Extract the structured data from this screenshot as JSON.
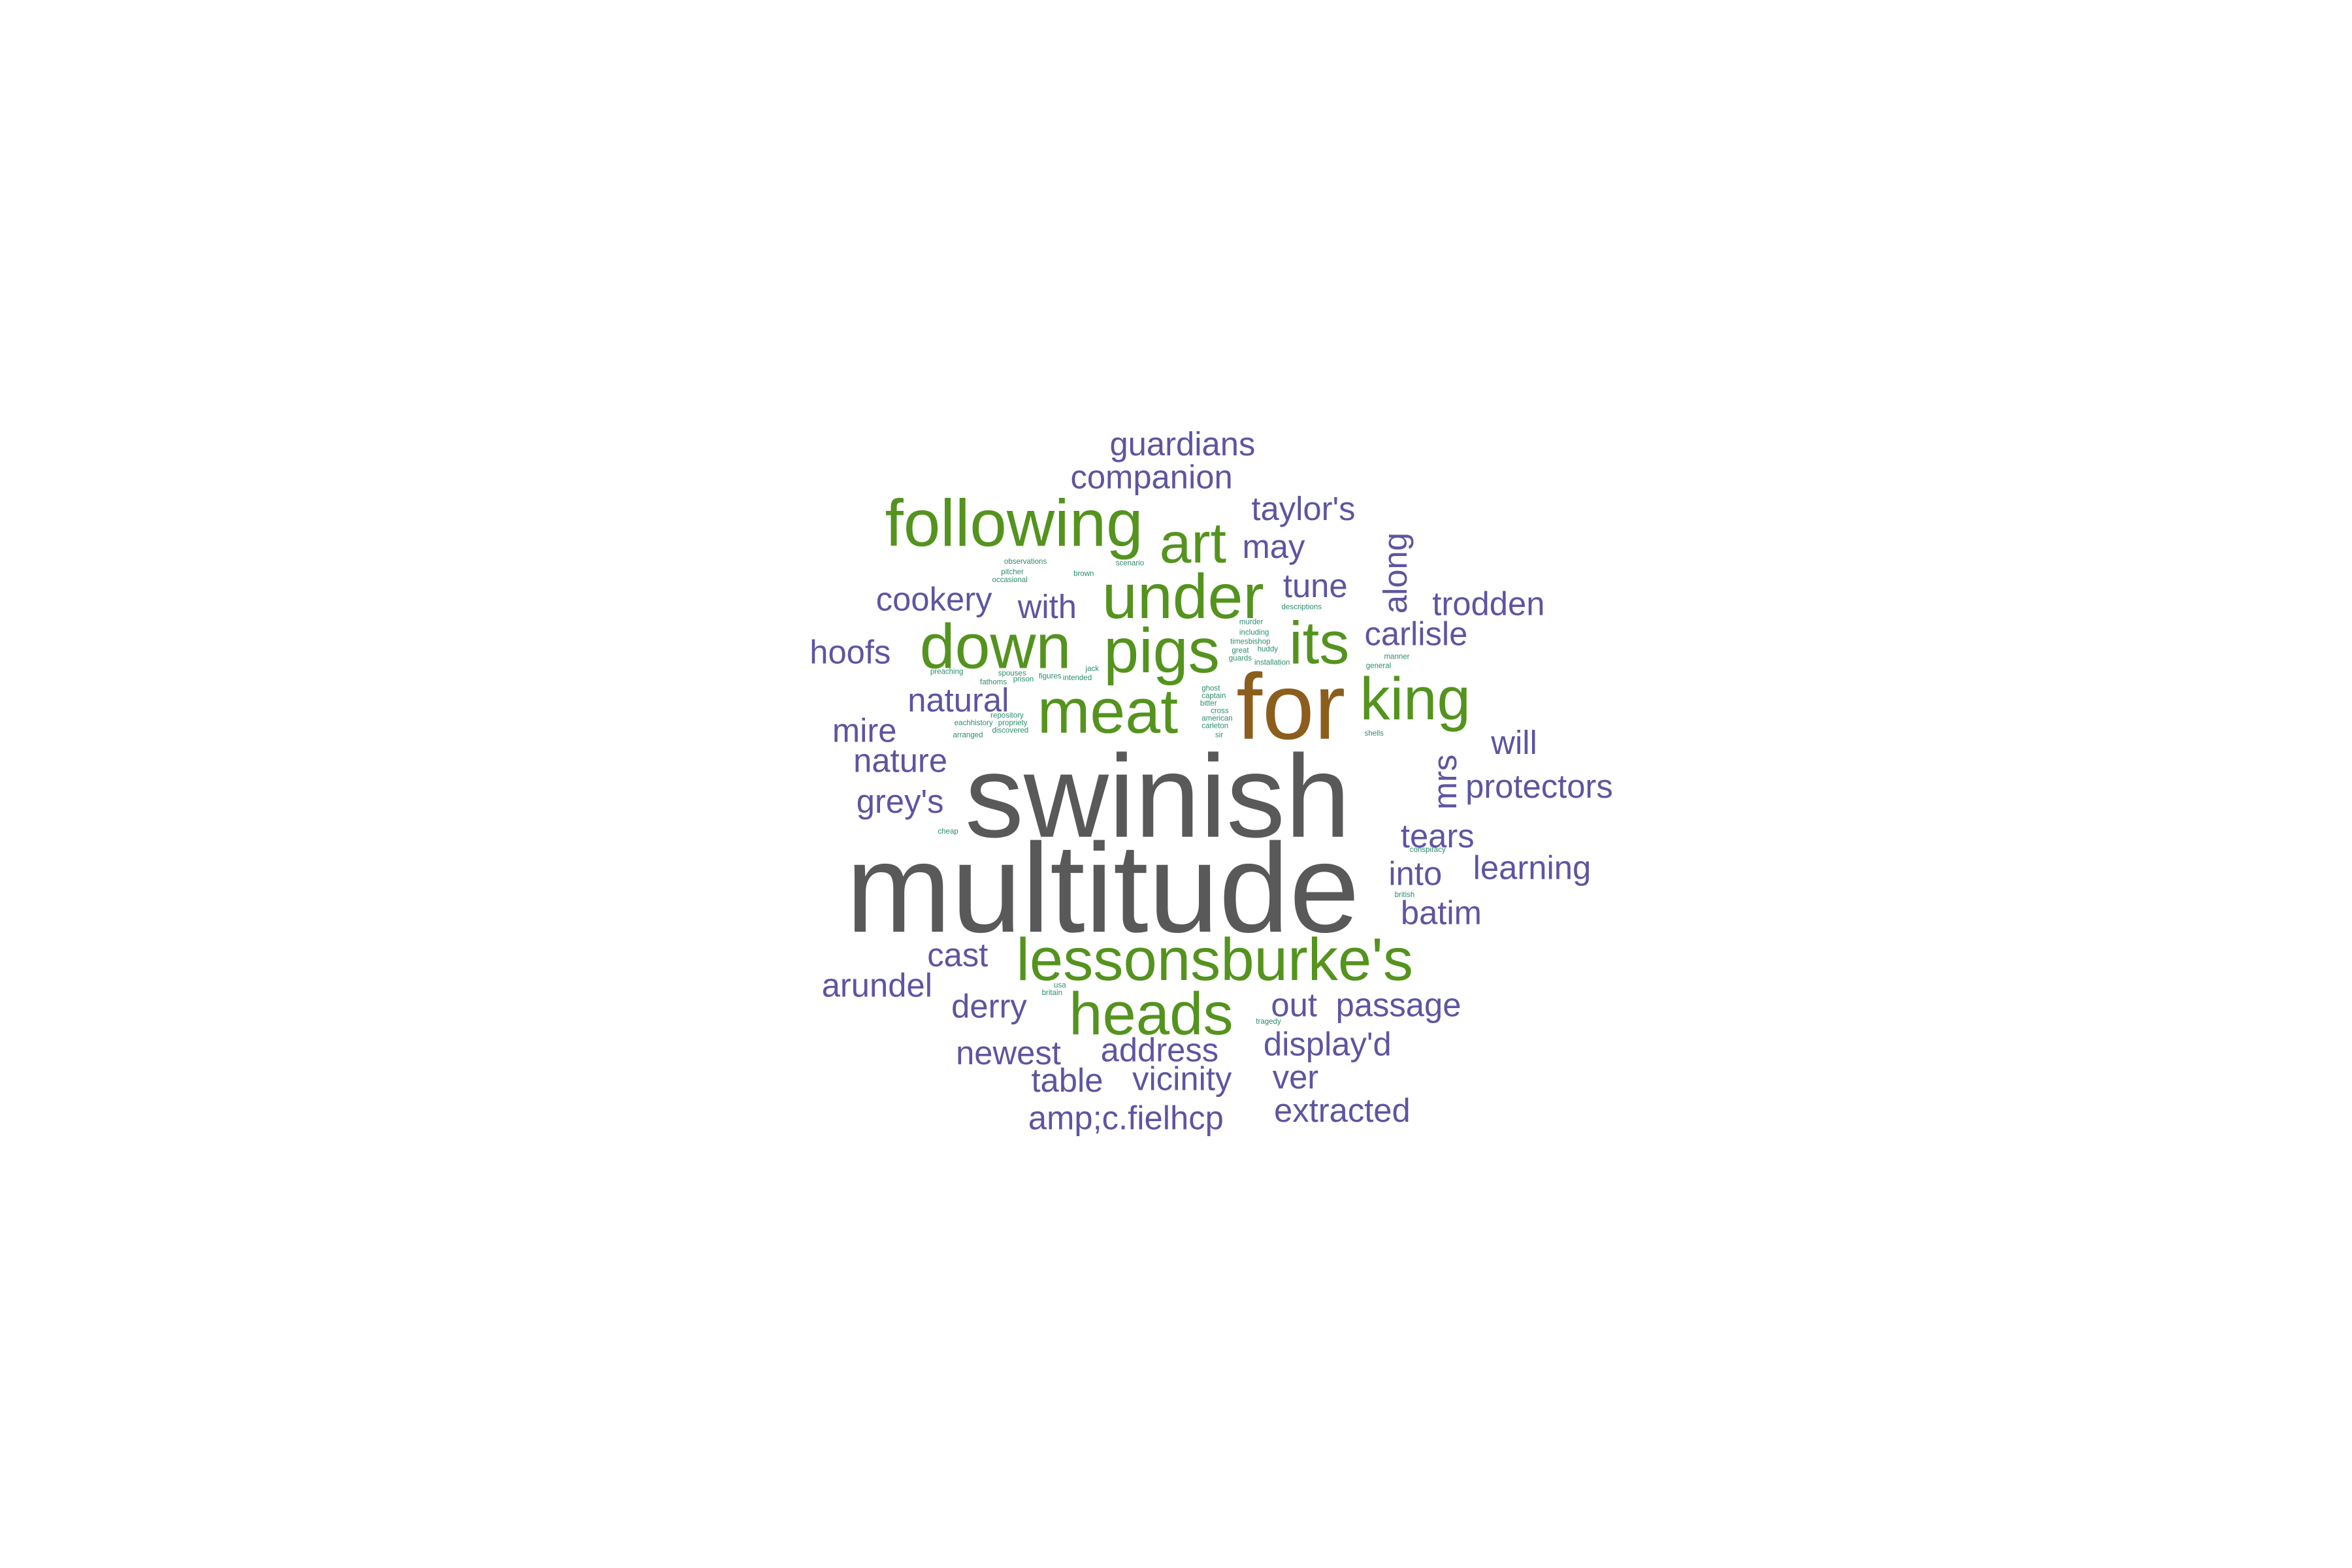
{
  "colors": {
    "background": "#ffffff",
    "tier1": "#595959",
    "tier2": "#8c5e1d",
    "tier3": "#54931e",
    "tier4": "#5e55a0",
    "tier5": "#2a8d6e"
  },
  "words": [
    {
      "text": "multitude",
      "tier": 1
    },
    {
      "text": "swinish",
      "tier": 1
    },
    {
      "text": "for",
      "tier": 2
    },
    {
      "text": "heads",
      "tier": 3
    },
    {
      "text": "lessonsburke's",
      "tier": 3
    },
    {
      "text": "pigs",
      "tier": 3
    },
    {
      "text": "meat",
      "tier": 3
    },
    {
      "text": "down",
      "tier": 3
    },
    {
      "text": "under",
      "tier": 3
    },
    {
      "text": "following",
      "tier": 3
    },
    {
      "text": "art",
      "tier": 3
    },
    {
      "text": "its",
      "tier": 3
    },
    {
      "text": "king",
      "tier": 3
    },
    {
      "text": "guardians",
      "tier": 4
    },
    {
      "text": "companion",
      "tier": 4
    },
    {
      "text": "taylor's",
      "tier": 4
    },
    {
      "text": "may",
      "tier": 4
    },
    {
      "text": "tune",
      "tier": 4
    },
    {
      "text": "cookery",
      "tier": 4
    },
    {
      "text": "with",
      "tier": 4
    },
    {
      "text": "trodden",
      "tier": 4
    },
    {
      "text": "carlisle",
      "tier": 4
    },
    {
      "text": "hoofs",
      "tier": 4
    },
    {
      "text": "natural",
      "tier": 4
    },
    {
      "text": "mire",
      "tier": 4
    },
    {
      "text": "will",
      "tier": 4
    },
    {
      "text": "nature",
      "tier": 4
    },
    {
      "text": "protectors",
      "tier": 4
    },
    {
      "text": "grey's",
      "tier": 4
    },
    {
      "text": "tears",
      "tier": 4
    },
    {
      "text": "into",
      "tier": 4
    },
    {
      "text": "learning",
      "tier": 4
    },
    {
      "text": "batim",
      "tier": 4
    },
    {
      "text": "cast",
      "tier": 4
    },
    {
      "text": "arundel",
      "tier": 4
    },
    {
      "text": "derry",
      "tier": 4
    },
    {
      "text": "out",
      "tier": 4
    },
    {
      "text": "passage",
      "tier": 4
    },
    {
      "text": "newest",
      "tier": 4
    },
    {
      "text": "address",
      "tier": 4
    },
    {
      "text": "display'd",
      "tier": 4
    },
    {
      "text": "table",
      "tier": 4
    },
    {
      "text": "vicinity",
      "tier": 4
    },
    {
      "text": "ver",
      "tier": 4
    },
    {
      "text": "amp;c.fielhcp",
      "tier": 4
    },
    {
      "text": "extracted",
      "tier": 4
    },
    {
      "text": "along",
      "tier": 4
    },
    {
      "text": "mrs",
      "tier": 4
    },
    {
      "text": "observations",
      "tier": 5
    },
    {
      "text": "pitcher",
      "tier": 5
    },
    {
      "text": "occasional",
      "tier": 5
    },
    {
      "text": "brown",
      "tier": 5
    },
    {
      "text": "scenario",
      "tier": 5
    },
    {
      "text": "descriptions",
      "tier": 5
    },
    {
      "text": "murder",
      "tier": 5
    },
    {
      "text": "including",
      "tier": 5
    },
    {
      "text": "timesbishop",
      "tier": 5
    },
    {
      "text": "great",
      "tier": 5
    },
    {
      "text": "huddy",
      "tier": 5
    },
    {
      "text": "guards",
      "tier": 5
    },
    {
      "text": "installation",
      "tier": 5
    },
    {
      "text": "manner",
      "tier": 5
    },
    {
      "text": "general",
      "tier": 5
    },
    {
      "text": "preaching",
      "tier": 5
    },
    {
      "text": "spouses",
      "tier": 5
    },
    {
      "text": "figures",
      "tier": 5
    },
    {
      "text": "jack",
      "tier": 5
    },
    {
      "text": "intended",
      "tier": 5
    },
    {
      "text": "prison",
      "tier": 5
    },
    {
      "text": "fathoms",
      "tier": 5
    },
    {
      "text": "ghost",
      "tier": 5
    },
    {
      "text": "captain",
      "tier": 5
    },
    {
      "text": "bitter",
      "tier": 5
    },
    {
      "text": "cross",
      "tier": 5
    },
    {
      "text": "american",
      "tier": 5
    },
    {
      "text": "carleton",
      "tier": 5
    },
    {
      "text": "sir",
      "tier": 5
    },
    {
      "text": "repository",
      "tier": 5
    },
    {
      "text": "eachhistory",
      "tier": 5
    },
    {
      "text": "propriety",
      "tier": 5
    },
    {
      "text": "arranged",
      "tier": 5
    },
    {
      "text": "discovered",
      "tier": 5
    },
    {
      "text": "shells",
      "tier": 5
    },
    {
      "text": "cheap",
      "tier": 5
    },
    {
      "text": "conspiracy",
      "tier": 5
    },
    {
      "text": "british",
      "tier": 5
    },
    {
      "text": "tragedy",
      "tier": 5
    },
    {
      "text": "britain",
      "tier": 5
    },
    {
      "text": "usa",
      "tier": 5
    }
  ]
}
